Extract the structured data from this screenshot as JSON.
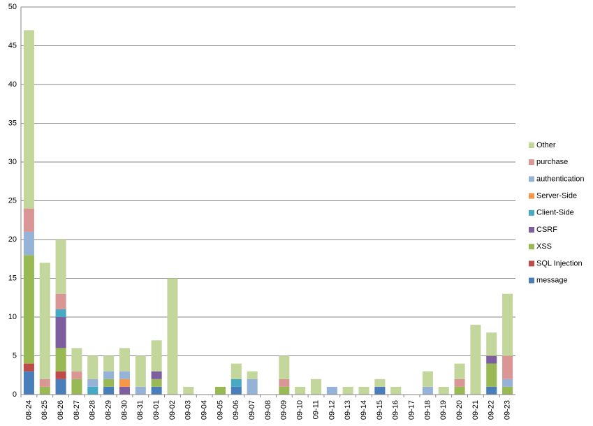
{
  "chart_data": {
    "type": "stacked_bar",
    "categories": [
      "08-24",
      "08-25",
      "08-26",
      "08-27",
      "08-28",
      "08-29",
      "08-30",
      "08-31",
      "09-01",
      "09-02",
      "09-03",
      "09-04",
      "09-05",
      "09-06",
      "09-07",
      "09-08",
      "09-09",
      "09-10",
      "09-11",
      "09-12",
      "09-13",
      "09-14",
      "09-15",
      "09-16",
      "09-17",
      "09-18",
      "09-19",
      "09-20",
      "09-21",
      "09-22",
      "09-23"
    ],
    "series": [
      {
        "name": "message",
        "color": "#4a7ebb",
        "values": [
          3,
          0,
          2,
          0,
          0,
          1,
          0,
          0,
          1,
          0,
          0,
          0,
          0,
          1,
          0,
          0,
          0,
          0,
          0,
          0,
          0,
          0,
          1,
          0,
          0,
          0,
          0,
          0,
          0,
          1,
          0
        ]
      },
      {
        "name": "SQL Injection",
        "color": "#be4b48",
        "values": [
          1,
          0,
          1,
          0,
          0,
          0,
          0,
          0,
          0,
          0,
          0,
          0,
          0,
          0,
          0,
          0,
          0,
          0,
          0,
          0,
          0,
          0,
          0,
          0,
          0,
          0,
          0,
          0,
          0,
          0,
          0
        ]
      },
      {
        "name": "XSS",
        "color": "#98b954",
        "values": [
          14,
          1,
          3,
          2,
          0,
          1,
          0,
          0,
          1,
          0,
          0,
          0,
          1,
          0,
          0,
          0,
          1,
          0,
          0,
          0,
          0,
          0,
          0,
          0,
          0,
          0,
          0,
          1,
          0,
          3,
          1
        ]
      },
      {
        "name": "CSRF",
        "color": "#7d5fa0",
        "values": [
          0,
          0,
          4,
          0,
          0,
          0,
          1,
          0,
          1,
          0,
          0,
          0,
          0,
          0,
          0,
          0,
          0,
          0,
          0,
          0,
          0,
          0,
          0,
          0,
          0,
          0,
          0,
          0,
          0,
          1,
          0
        ]
      },
      {
        "name": "Client-Side",
        "color": "#46aac5",
        "values": [
          0,
          0,
          1,
          0,
          1,
          0,
          0,
          0,
          0,
          0,
          0,
          0,
          0,
          1,
          0,
          0,
          0,
          0,
          0,
          0,
          0,
          0,
          0,
          0,
          0,
          0,
          0,
          0,
          0,
          0,
          0
        ]
      },
      {
        "name": "Server-Side",
        "color": "#f79646",
        "values": [
          0,
          0,
          0,
          0,
          0,
          0,
          1,
          0,
          0,
          0,
          0,
          0,
          0,
          0,
          0,
          0,
          0,
          0,
          0,
          0,
          0,
          0,
          0,
          0,
          0,
          0,
          0,
          0,
          0,
          0,
          0
        ]
      },
      {
        "name": "authentication",
        "color": "#95b3d7",
        "values": [
          3,
          0,
          0,
          0,
          1,
          1,
          1,
          1,
          0,
          0,
          0,
          0,
          0,
          0,
          2,
          0,
          0,
          0,
          0,
          1,
          0,
          0,
          0,
          0,
          0,
          1,
          0,
          0,
          0,
          0,
          1
        ]
      },
      {
        "name": "purchase",
        "color": "#d99694",
        "values": [
          3,
          1,
          2,
          1,
          0,
          0,
          0,
          0,
          0,
          0,
          0,
          0,
          0,
          0,
          0,
          0,
          1,
          0,
          0,
          0,
          0,
          0,
          0,
          0,
          0,
          0,
          0,
          1,
          0,
          0,
          3
        ]
      },
      {
        "name": "Other",
        "color": "#c3d69b",
        "values": [
          23,
          15,
          7,
          3,
          3,
          2,
          3,
          4,
          4,
          15,
          1,
          0,
          0,
          2,
          1,
          0,
          3,
          1,
          2,
          0,
          1,
          1,
          1,
          1,
          0,
          2,
          1,
          2,
          9,
          3,
          8
        ]
      }
    ],
    "ylim": [
      0,
      50
    ],
    "yticks": [
      0,
      5,
      10,
      15,
      20,
      25,
      30,
      35,
      40,
      45,
      50
    ],
    "grid": true,
    "legend": "right"
  }
}
